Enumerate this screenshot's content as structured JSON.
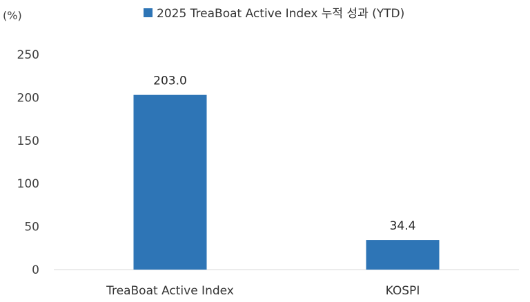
{
  "chart_data": {
    "type": "bar",
    "unit_label": "(%)",
    "categories": [
      "TreaBoat Active Index",
      "KOSPI"
    ],
    "series": [
      {
        "name": "2025 TreaBoat Active Index 누적 성과 (YTD)",
        "values": [
          203.0,
          34.4
        ],
        "color": "#2E75B6"
      }
    ],
    "data_labels": [
      "203.0",
      "34.4"
    ],
    "ylim": [
      0,
      250
    ],
    "yticks": [
      0,
      50,
      100,
      150,
      200,
      250
    ],
    "grid": false,
    "legend_position": "top-center"
  }
}
